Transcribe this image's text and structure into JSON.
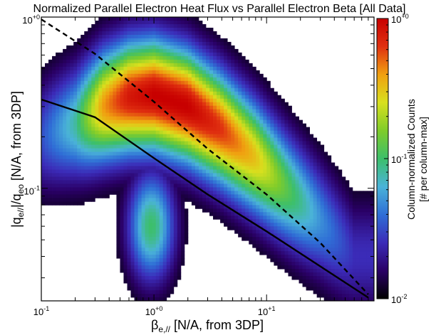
{
  "chart_data": {
    "type": "heatmap",
    "title": "Normalized Parallel Electron Heat Flux vs Parallel Electron Beta [All Data]",
    "xlabel": "βe,// [N/A, from 3DP]",
    "ylabel": "|qe//|/qeo [N/A, from 3DP]",
    "x_scale": "log",
    "y_scale": "log",
    "xlim": [
      0.1,
      90
    ],
    "ylim": [
      0.022,
      1.0
    ],
    "x_ticks": [
      "10-1",
      "10+0",
      "10+1"
    ],
    "y_ticks": [
      "10-1",
      "10+0"
    ],
    "colorbar": {
      "label_line1": "Column-normalized Counts",
      "label_line2": "[# per column-max]",
      "scale": "log",
      "range": [
        0.01,
        1.0
      ],
      "ticks": [
        "10-2",
        "10-1",
        "10+0"
      ],
      "colormap_stops": [
        "#000000",
        "#2a0066",
        "#3b2bb8",
        "#2f6ed6",
        "#4ab3d8",
        "#3cbf6a",
        "#7fcc2a",
        "#d8e01e",
        "#f0a010",
        "#e03010",
        "#c80000"
      ]
    },
    "density_ridge": {
      "x": [
        0.1,
        0.2,
        0.35,
        0.6,
        1.0,
        2.0,
        4.0,
        8.0,
        15.0,
        30.0,
        60.0
      ],
      "y": [
        0.2,
        0.24,
        0.3,
        0.34,
        0.35,
        0.3,
        0.22,
        0.15,
        0.1,
        0.065,
        0.04
      ],
      "intensity": [
        0.25,
        0.45,
        0.8,
        0.95,
        1.0,
        1.0,
        0.9,
        0.75,
        0.55,
        0.35,
        0.2
      ]
    },
    "secondary_core": {
      "x": [
        0.6,
        1.5
      ],
      "y": [
        0.03,
        0.12
      ],
      "intensity": 0.5
    },
    "series": [
      {
        "style": "solid",
        "x": [
          0.1,
          0.3,
          1.0,
          3.0,
          10.0,
          30.0,
          80.0
        ],
        "y": [
          0.33,
          0.26,
          0.15,
          0.092,
          0.056,
          0.035,
          0.023
        ]
      },
      {
        "style": "dashed",
        "x": [
          0.1,
          0.3,
          1.0,
          3.0,
          10.0,
          30.0,
          80.0
        ],
        "y": [
          0.97,
          0.61,
          0.32,
          0.17,
          0.092,
          0.048,
          0.024
        ]
      }
    ]
  }
}
